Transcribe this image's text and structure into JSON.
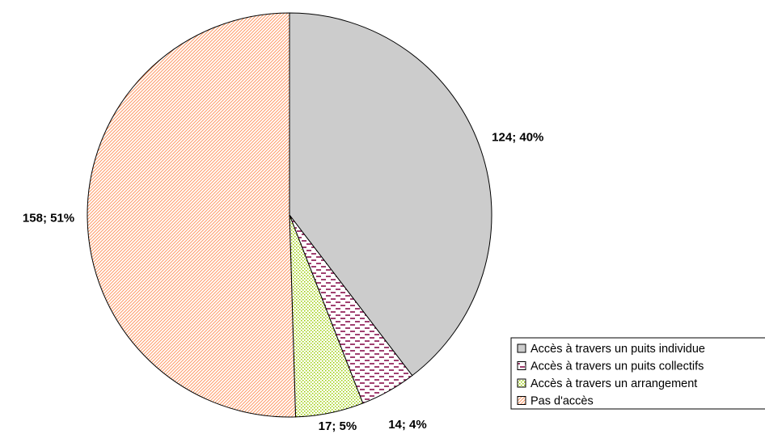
{
  "chart_data": {
    "type": "pie",
    "categories": [
      "Accès à travers un puits individue",
      "Accès à travers un puits collectifs",
      "Accès à travers un arrangement",
      "Pas d'accès"
    ],
    "values": [
      124,
      14,
      17,
      158
    ],
    "value_labels": [
      "124; 40%",
      "14; 4%",
      "17; 5%",
      "158; 51%"
    ],
    "colors": [
      "#c0c0c0",
      "#800040",
      "#99cc00",
      "#ff9966"
    ],
    "legend": "bottom-right"
  }
}
